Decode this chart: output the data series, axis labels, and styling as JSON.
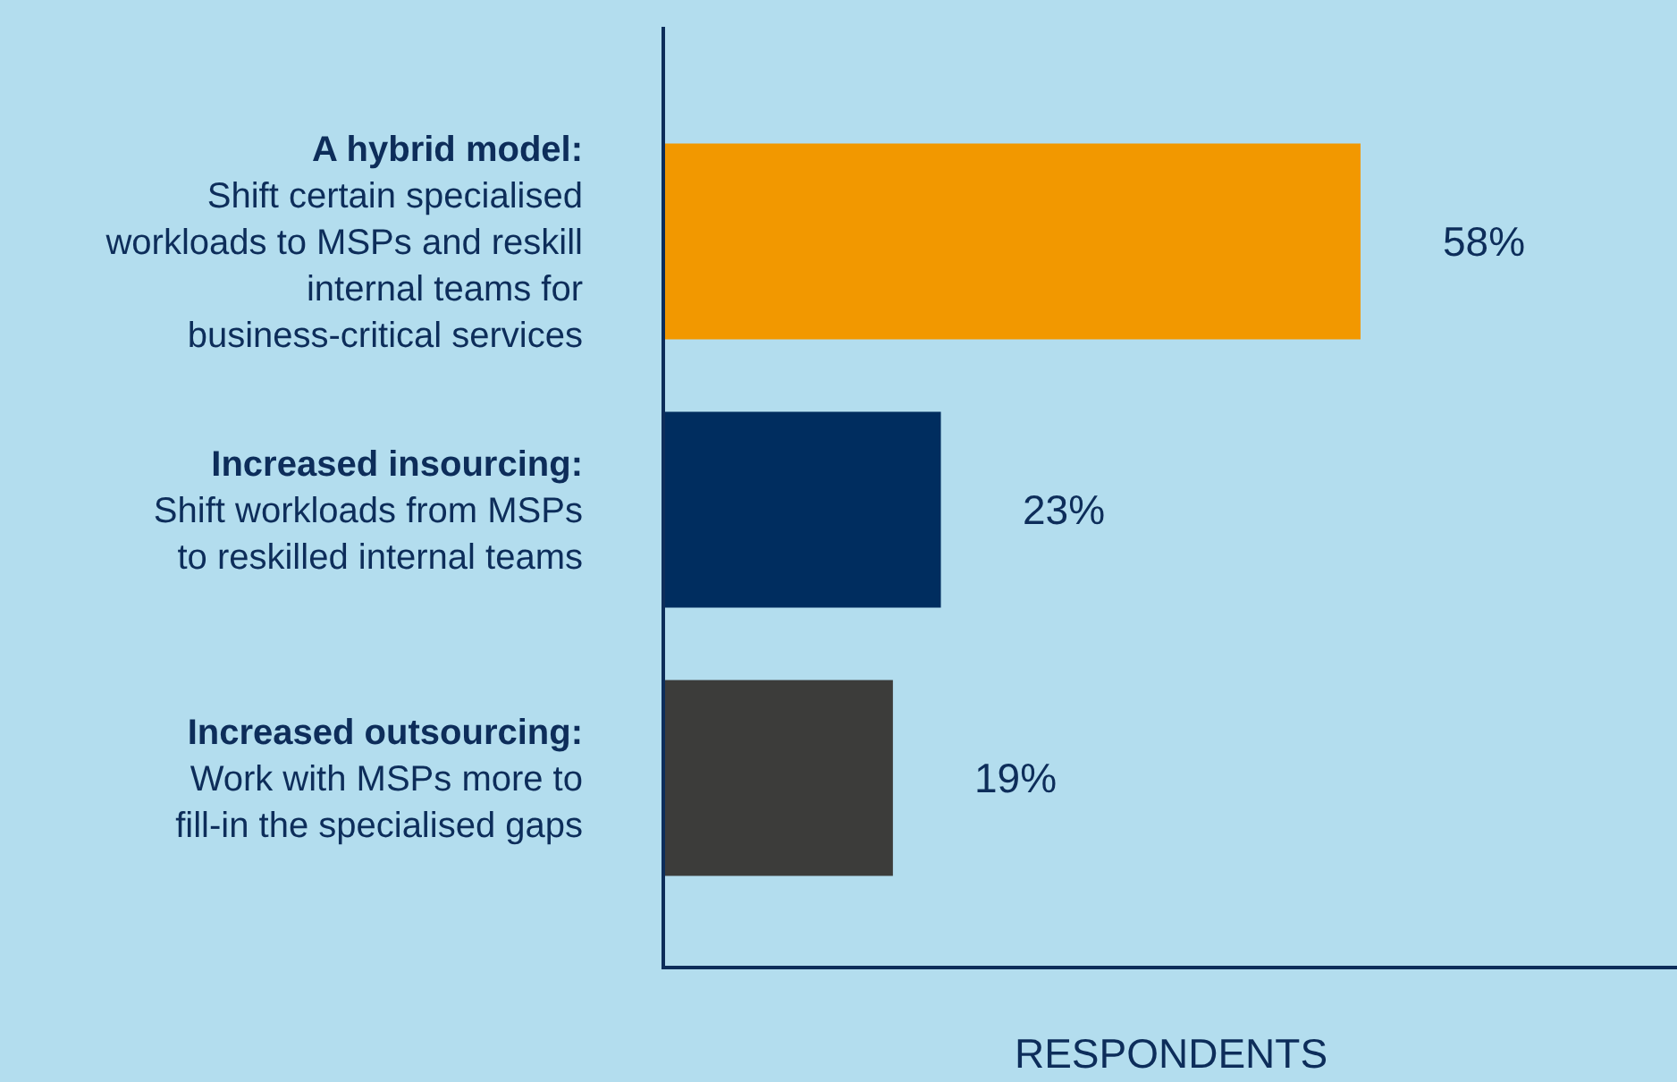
{
  "chart_data": {
    "type": "bar",
    "orientation": "horizontal",
    "xlabel": "RESPONDENTS",
    "categories": [
      "A hybrid model:\nShift certain specialised\nworkloads to MSPs and reskill\ninternal teams for\nbusiness-critical services",
      "Increased insourcing:\nShift workloads from MSPs\nto reskilled internal teams",
      "Increased outsourcing:\nWork with MSPs more to\nfill-in the specialised gaps"
    ],
    "values": [
      58,
      23,
      19
    ],
    "colors": [
      "#f29800",
      "#002d5f",
      "#3c3c3a"
    ],
    "value_labels": [
      "58%",
      "23%",
      "19%"
    ],
    "grid": false,
    "legend": false
  }
}
